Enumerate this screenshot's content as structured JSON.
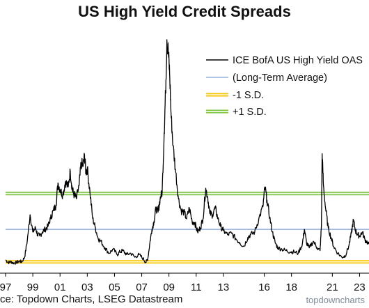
{
  "chart_data": {
    "type": "line",
    "title": "US High Yield Credit Spreads",
    "xlabel": "",
    "ylabel": "",
    "xlim": [
      1997.0,
      2024.0
    ],
    "x_ticks": [
      1997,
      1999,
      2001,
      2003,
      2005,
      2007,
      2009,
      2011,
      2013,
      2016,
      2018,
      2021,
      2023
    ],
    "x_tick_labels": [
      "97",
      "99",
      "01",
      "03",
      "05",
      "07",
      "09",
      "11",
      "13",
      "16",
      "18",
      "21",
      "23"
    ],
    "grid": false,
    "legend_position": "top-right",
    "colors": {
      "series": "#000000",
      "average": "#7f9fd6",
      "minus_sd": "#f5c400",
      "plus_sd": "#7cc242"
    },
    "series": [
      {
        "name": "ICE BofA US High Yield OAS",
        "x": [
          1997.0,
          1997.2,
          1997.4,
          1997.6,
          1997.8,
          1998.0,
          1998.2,
          1998.4,
          1998.6,
          1998.8,
          1999.0,
          1999.2,
          1999.35,
          1999.5,
          1999.7,
          1999.9,
          2000.1,
          2000.3,
          2000.5,
          2000.7,
          2000.85,
          2001.0,
          2001.2,
          2001.4,
          2001.6,
          2001.75,
          2001.9,
          2002.0,
          2002.2,
          2002.4,
          2002.55,
          2002.7,
          2002.8,
          2002.9,
          2003.0,
          2003.2,
          2003.4,
          2003.6,
          2003.8,
          2004.0,
          2004.3,
          2004.6,
          2004.9,
          2005.2,
          2005.4,
          2005.6,
          2005.9,
          2006.2,
          2006.5,
          2006.8,
          2007.1,
          2007.3,
          2007.45,
          2007.6,
          2007.75,
          2007.9,
          2008.05,
          2008.2,
          2008.35,
          2008.5,
          2008.65,
          2008.75,
          2008.85,
          2008.95,
          2009.05,
          2009.15,
          2009.3,
          2009.5,
          2009.7,
          2009.9,
          2010.1,
          2010.3,
          2010.5,
          2010.7,
          2010.9,
          2011.1,
          2011.3,
          2011.5,
          2011.7,
          2011.85,
          2012.0,
          2012.2,
          2012.4,
          2012.6,
          2012.8,
          2013.0,
          2013.3,
          2013.6,
          2013.9,
          2014.2,
          2014.5,
          2014.8,
          2015.0,
          2015.3,
          2015.6,
          2015.9,
          2016.05,
          2016.2,
          2016.4,
          2016.6,
          2016.8,
          2017.0,
          2017.3,
          2017.6,
          2017.9,
          2018.2,
          2018.5,
          2018.8,
          2018.95,
          2019.1,
          2019.3,
          2019.6,
          2019.9,
          2020.1,
          2020.2,
          2020.25,
          2020.35,
          2020.5,
          2020.7,
          2020.9,
          2021.1,
          2021.4,
          2021.7,
          2021.95,
          2022.2,
          2022.4,
          2022.55,
          2022.7,
          2022.85,
          2023.0,
          2023.2,
          2023.4,
          2023.6,
          2023.8,
          2024.0
        ],
        "y": [
          2.9,
          2.7,
          2.75,
          2.65,
          2.7,
          2.8,
          2.75,
          3.1,
          4.4,
          6.3,
          5.0,
          5.3,
          4.8,
          4.7,
          5.0,
          5.2,
          5.4,
          6.0,
          6.6,
          7.0,
          8.7,
          8.2,
          7.8,
          8.8,
          8.4,
          9.6,
          8.2,
          7.9,
          7.5,
          8.5,
          10.2,
          10.0,
          10.8,
          9.5,
          9.8,
          8.0,
          6.0,
          5.3,
          4.5,
          4.3,
          3.8,
          3.4,
          3.7,
          3.3,
          3.5,
          3.6,
          3.3,
          3.4,
          3.1,
          3.3,
          3.0,
          2.7,
          3.0,
          4.2,
          5.2,
          5.8,
          6.8,
          6.5,
          7.5,
          8.0,
          12.5,
          15.5,
          19.5,
          18.6,
          17.0,
          14.0,
          11.5,
          9.5,
          7.5,
          6.6,
          6.5,
          6.0,
          6.8,
          5.8,
          5.7,
          5.0,
          5.3,
          6.0,
          8.3,
          7.6,
          6.4,
          6.3,
          6.8,
          6.0,
          5.4,
          5.1,
          4.8,
          4.9,
          4.5,
          4.2,
          3.9,
          4.6,
          4.8,
          5.0,
          6.0,
          6.9,
          8.4,
          7.4,
          6.1,
          5.0,
          4.2,
          3.8,
          3.7,
          3.6,
          3.5,
          3.5,
          3.4,
          4.1,
          5.2,
          4.2,
          3.8,
          4.3,
          3.8,
          3.6,
          5.5,
          10.9,
          8.5,
          6.8,
          5.3,
          4.6,
          3.9,
          3.4,
          3.1,
          3.2,
          3.9,
          4.9,
          5.9,
          5.1,
          4.8,
          4.7,
          5.0,
          4.4,
          4.2,
          3.9,
          3.6
        ]
      },
      {
        "name": "(Long-Term Average)",
        "constant": 5.2
      },
      {
        "name": "-1 S.D.",
        "constant": 2.75
      },
      {
        "name": "+1 S.D.",
        "constant": 7.9
      }
    ]
  },
  "footer": {
    "source": "ce: Topdown Charts, LSEG Datastream",
    "watermark": "topdowncharts"
  }
}
